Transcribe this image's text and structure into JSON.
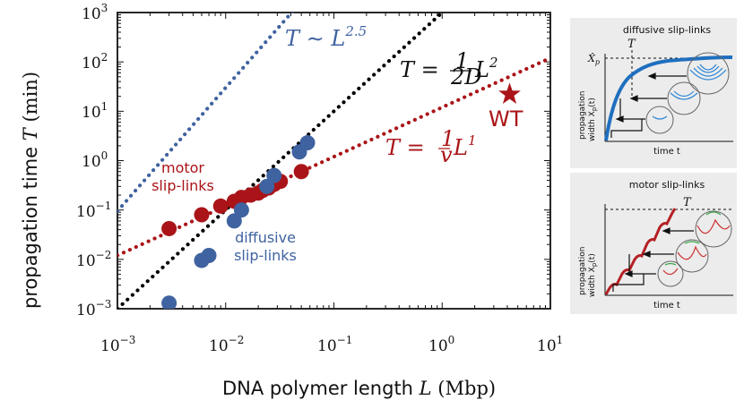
{
  "chart_data": {
    "type": "scatter",
    "xscale": "log",
    "yscale": "log",
    "xlim": [
      0.001,
      10
    ],
    "ylim": [
      0.001,
      1000
    ],
    "xticks": [
      {
        "base": "10",
        "exp": "−3"
      },
      {
        "base": "10",
        "exp": "−2"
      },
      {
        "base": "10",
        "exp": "−1"
      },
      {
        "base": "10",
        "exp": "0"
      },
      {
        "base": "10",
        "exp": "1"
      }
    ],
    "yticks": [
      {
        "base": "10",
        "exp": "−3"
      },
      {
        "base": "10",
        "exp": "−2"
      },
      {
        "base": "10",
        "exp": "−1"
      },
      {
        "base": "10",
        "exp": "0"
      },
      {
        "base": "10",
        "exp": "1"
      },
      {
        "base": "10",
        "exp": "2"
      },
      {
        "base": "10",
        "exp": "3"
      }
    ],
    "xlabel": {
      "text": "DNA polymer length ",
      "sym": "L",
      "unit": " (Mbp)"
    },
    "ylabel": {
      "text": "propagation time ",
      "sym": "T",
      "unit": " (min)"
    },
    "series": [
      {
        "name": "motor slip-links",
        "color": "#aa1418",
        "x": [
          0.003,
          0.006,
          0.009,
          0.012,
          0.014,
          0.017,
          0.02,
          0.022,
          0.025,
          0.028,
          0.032,
          0.05
        ],
        "y": [
          0.042,
          0.08,
          0.12,
          0.15,
          0.18,
          0.2,
          0.22,
          0.25,
          0.28,
          0.33,
          0.38,
          0.6
        ]
      },
      {
        "name": "diffusive slip-links",
        "color": "#3f62a0",
        "x": [
          0.003,
          0.006,
          0.007,
          0.012,
          0.014,
          0.024,
          0.028,
          0.048,
          0.057
        ],
        "y": [
          0.0013,
          0.0095,
          0.012,
          0.06,
          0.1,
          0.3,
          0.5,
          1.5,
          2.3
        ]
      }
    ],
    "fit_lines": [
      {
        "name": "T ~ L^2.5",
        "color": "#3f62a0",
        "coef": 3000000.0,
        "exp": 2.5
      },
      {
        "name": "T = L^2/2D",
        "color": "#000000",
        "coef": 1000,
        "exp": 2
      },
      {
        "name": "T = L/v",
        "color": "#aa1418",
        "coef": 12,
        "exp": 1
      }
    ],
    "wt_point": {
      "label": "WT",
      "x": 4.2,
      "y": 22,
      "color": "#aa1418"
    },
    "annotations": {
      "blue_law": {
        "lhs": "T ∼ L",
        "exp": "2.5"
      },
      "black_law": {
        "lhs": "T = ",
        "num": "1",
        "den": "2D",
        "rhs": "L",
        "exp": "2"
      },
      "red_law": {
        "lhs": "T = ",
        "num": "1",
        "den": "v",
        "rhs": "L",
        "exp": "1"
      },
      "motor_label": [
        "motor",
        "slip-links"
      ],
      "diffusive_label": [
        "diffusive",
        "slip-links"
      ]
    }
  },
  "insets": {
    "top": {
      "title": "diffusive slip-links",
      "time_marker": "T",
      "xp_marker": "X̂",
      "xp_sub": "p",
      "ylabel_1": "propagation",
      "ylabel_2": "width X",
      "ylabel_sub": "p",
      "ylabel_arg": "(t)",
      "xlabel": "time t",
      "curve_color": "#1f6fbf"
    },
    "bottom": {
      "title": "motor slip-links",
      "time_marker": "T",
      "ylabel_1": "propagation",
      "ylabel_2": "width X",
      "ylabel_sub": "p",
      "ylabel_arg": "(t)",
      "xlabel": "time t",
      "curve_color": "#b52025"
    }
  }
}
